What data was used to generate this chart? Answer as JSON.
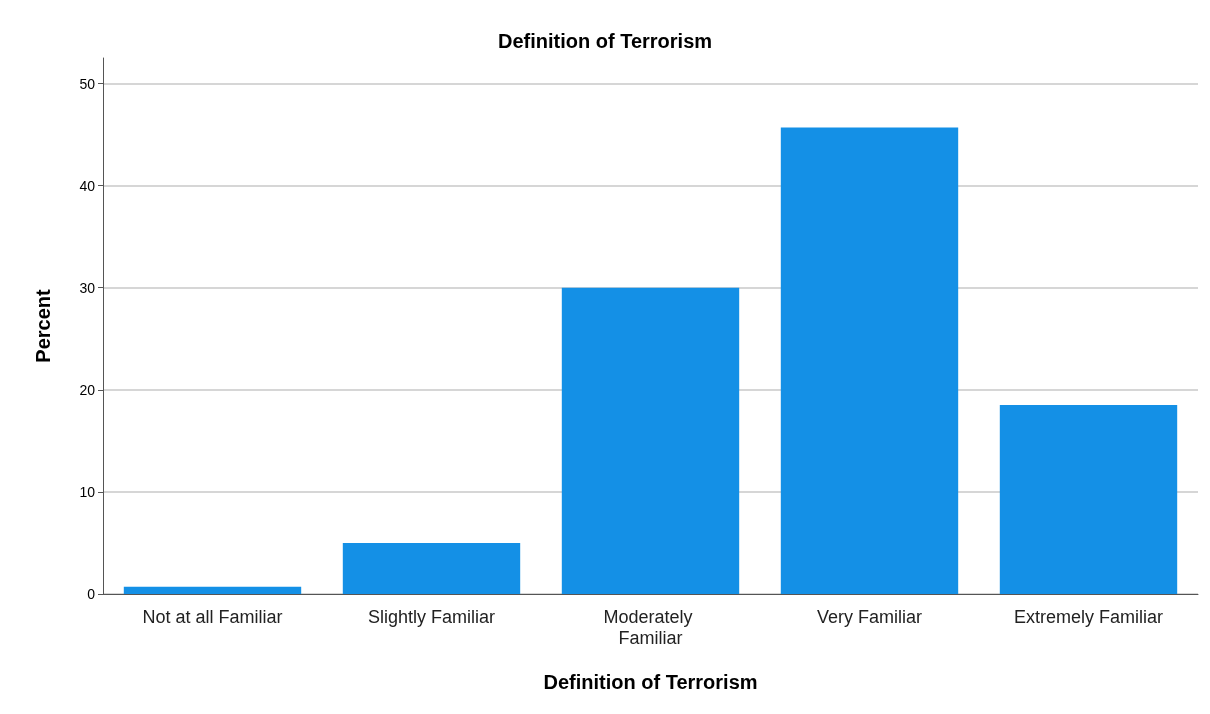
{
  "chart_data": {
    "type": "bar",
    "title": "Definition of Terrorism",
    "xlabel": "Definition of Terrorism",
    "ylabel": "Percent",
    "categories": [
      "Not at all Familiar",
      "Slightly Familiar",
      "Moderately Familiar",
      "Very Familiar",
      "Extremely Familiar"
    ],
    "values": [
      0.7,
      5.0,
      30.0,
      45.7,
      18.5
    ],
    "color": "#1490e6",
    "ylim": [
      0,
      52.5
    ],
    "yticks": [
      0,
      10,
      20,
      30,
      40,
      50
    ],
    "grid": "y"
  }
}
